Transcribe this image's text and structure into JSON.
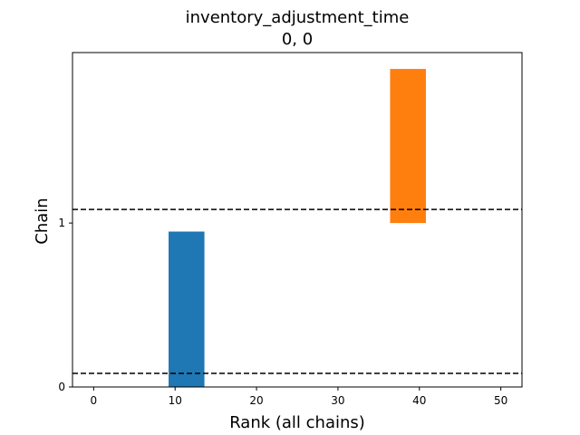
{
  "chart_data": {
    "type": "bar",
    "title": "inventory_adjustment_time",
    "subtitle": "0, 0",
    "xlabel": "Rank (all chains)",
    "ylabel": "Chain",
    "xlim": [
      -2.6,
      52.6
    ],
    "ylim": [
      0,
      2.04
    ],
    "xticks": [
      0,
      10,
      20,
      30,
      40,
      50
    ],
    "yticks": [
      0,
      1
    ],
    "grid": false,
    "legend": "none",
    "series": [
      {
        "chain": 0,
        "x_start": 9.2,
        "x_end": 13.6,
        "y_start": 0.0,
        "y_end": 0.948,
        "color": "#1f77b4"
      },
      {
        "chain": 1,
        "x_start": 36.4,
        "x_end": 40.8,
        "y_start": 1.0,
        "y_end": 1.94,
        "color": "#ff7f0e"
      }
    ],
    "reference_lines": [
      {
        "y": 0.083,
        "style": "dashed",
        "color": "#000000"
      },
      {
        "y": 1.083,
        "style": "dashed",
        "color": "#000000"
      }
    ]
  }
}
